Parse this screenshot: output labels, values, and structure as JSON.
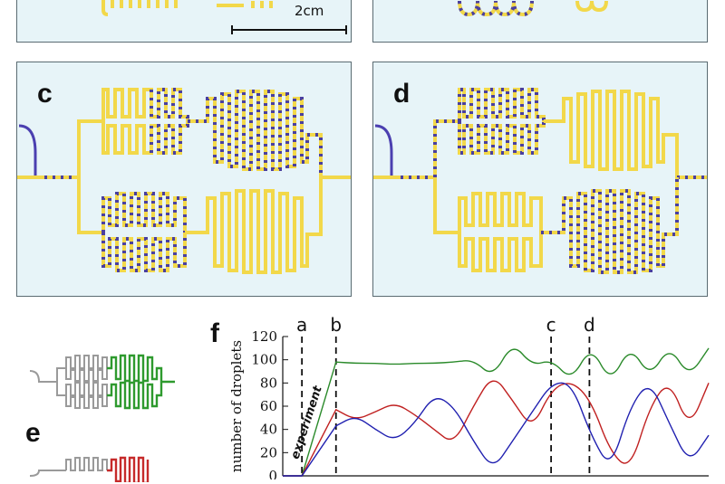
{
  "panels": [
    {
      "id": "a",
      "show_label": false
    },
    {
      "id": "b",
      "show_label": false
    },
    {
      "id": "c",
      "label": "c",
      "show_label": true
    },
    {
      "id": "d",
      "label": "d",
      "show_label": true
    }
  ],
  "scale_bar": {
    "label": "2cm"
  },
  "panel_e": {
    "label": "e"
  },
  "panel_f": {
    "label": "f"
  },
  "colors": {
    "channel": "#f2d84a",
    "droplet": "#4a3f9e",
    "inlet": "#4b3fb0",
    "panel_bg": "#e7f4f8",
    "schematic_inactive": "#9a9a9a",
    "schematic_green": "#2e9a2e",
    "schematic_red": "#c62a2a"
  },
  "chart_data": {
    "type": "line",
    "ylabel": "number of droplets",
    "ylim": [
      0,
      120
    ],
    "yticks": [
      "0",
      "20",
      "40",
      "60",
      "80",
      "100",
      "120"
    ],
    "annotation": "experiment",
    "markers": [
      "a",
      "b",
      "c",
      "d"
    ],
    "series": [
      {
        "color": "#2a8a2a",
        "values": [
          0,
          0,
          98,
          97,
          97,
          96,
          97,
          97,
          98,
          100,
          85,
          115,
          95,
          100,
          82,
          112,
          80,
          112,
          85,
          112,
          85,
          110
        ]
      },
      {
        "color": "#c02020",
        "values": [
          0,
          0,
          57,
          48,
          55,
          63,
          53,
          40,
          27,
          60,
          88,
          65,
          40,
          75,
          82,
          65,
          20,
          5,
          60,
          83,
          40,
          80
        ]
      },
      {
        "color": "#2020b0",
        "values": [
          0,
          0,
          43,
          52,
          40,
          30,
          45,
          70,
          60,
          30,
          5,
          30,
          55,
          80,
          80,
          35,
          5,
          60,
          82,
          45,
          10,
          35
        ]
      }
    ]
  }
}
